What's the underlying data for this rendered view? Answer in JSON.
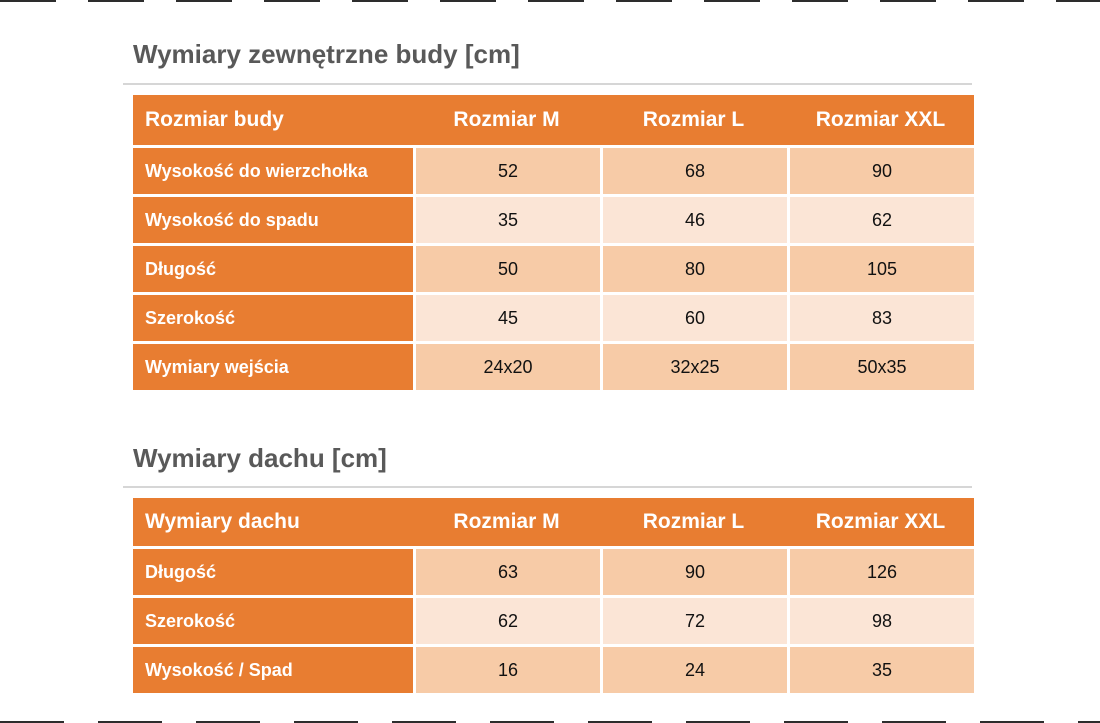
{
  "tables": [
    {
      "title": "Wymiary zewnętrzne budy [cm]",
      "headers": [
        "Rozmiar budy",
        "Rozmiar M",
        "Rozmiar L",
        "Rozmiar XXL"
      ],
      "rows": [
        {
          "label": "Wysokość do wierzchołka",
          "values": [
            "52",
            "68",
            "90"
          ]
        },
        {
          "label": "Wysokość do spadu",
          "values": [
            "35",
            "46",
            "62"
          ]
        },
        {
          "label": "Długość",
          "values": [
            "50",
            "80",
            "105"
          ]
        },
        {
          "label": "Szerokość",
          "values": [
            "45",
            "60",
            "83"
          ]
        },
        {
          "label": "Wymiary wejścia",
          "values": [
            "24x20",
            "32x25",
            "50x35"
          ]
        }
      ]
    },
    {
      "title": "Wymiary dachu [cm]",
      "headers": [
        "Wymiary dachu",
        "Rozmiar M",
        "Rozmiar L",
        "Rozmiar XXL"
      ],
      "rows": [
        {
          "label": "Długość",
          "values": [
            "63",
            "90",
            "126"
          ]
        },
        {
          "label": "Szerokość",
          "values": [
            "62",
            "72",
            "98"
          ]
        },
        {
          "label": "Wysokość / Spad",
          "values": [
            "16",
            "24",
            "35"
          ]
        }
      ]
    }
  ],
  "colors": {
    "accent_orange": "#E87D31",
    "band_dark": "#F7CBA7",
    "band_light": "#FBE5D6",
    "title_text": "#595959",
    "header_text": "#FFFFFF",
    "value_text": "#111111",
    "rule_gray": "#D6D6D6",
    "edge_dash": "#2D2D2D"
  }
}
